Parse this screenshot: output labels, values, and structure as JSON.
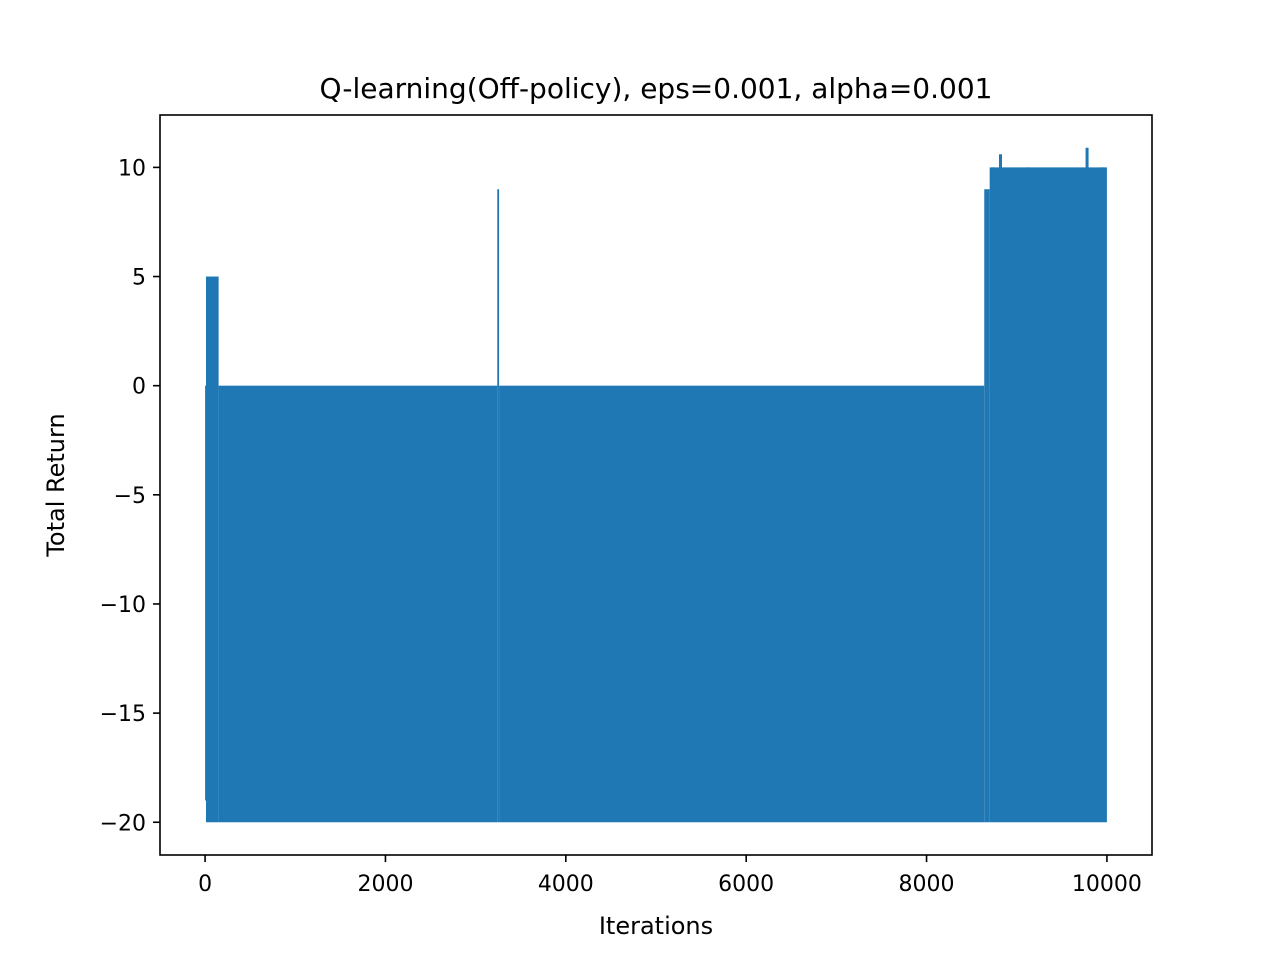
{
  "chart_data": {
    "type": "line",
    "title": "Q-learning(Off-policy), eps=0.001, alpha=0.001",
    "xlabel": "Iterations",
    "ylabel": "Total Return",
    "xlim": [
      -500,
      10500
    ],
    "ylim": [
      -21.5,
      12.4
    ],
    "x_ticks": [
      0,
      2000,
      4000,
      6000,
      8000,
      10000
    ],
    "y_ticks": [
      -20,
      -15,
      -10,
      -5,
      0,
      5,
      10
    ],
    "x_tick_labels": [
      "0",
      "2000",
      "4000",
      "6000",
      "8000",
      "10000"
    ],
    "y_tick_labels": [
      "−20",
      "−15",
      "−10",
      "−5",
      "0",
      "5",
      "10"
    ],
    "grid": false,
    "color": "#1f77b4",
    "series": [
      {
        "x_range": [
          0,
          10000
        ],
        "envelope": [
          {
            "x0": 0,
            "x1": 10,
            "lower": -19,
            "upper": 0
          },
          {
            "x0": 10,
            "x1": 150,
            "lower": -20,
            "upper": 5
          },
          {
            "x0": 150,
            "x1": 3240,
            "lower": -20,
            "upper": 0
          },
          {
            "x0": 3240,
            "x1": 3260,
            "lower": -20,
            "upper": 9
          },
          {
            "x0": 3260,
            "x1": 8640,
            "lower": -20,
            "upper": 0
          },
          {
            "x0": 8640,
            "x1": 8700,
            "lower": -20,
            "upper": 9
          },
          {
            "x0": 8700,
            "x1": 10000,
            "lower": -20,
            "upper": 10
          }
        ],
        "spikes": [
          {
            "x": 8740,
            "y": 10.0
          },
          {
            "x": 8820,
            "y": 10.6
          },
          {
            "x": 9120,
            "y": 10.0
          },
          {
            "x": 9780,
            "y": 10.9
          },
          {
            "x": 9950,
            "y": 10.0
          }
        ]
      }
    ]
  }
}
